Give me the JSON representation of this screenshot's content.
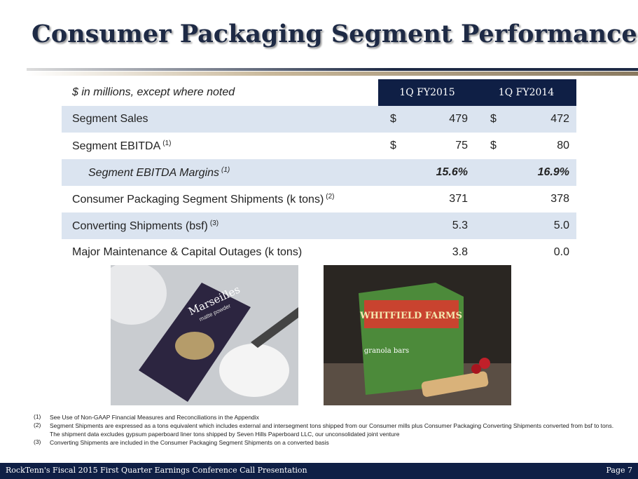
{
  "header": {
    "title": "Consumer Packaging Segment Performance"
  },
  "table": {
    "caption": "$ in millions, except where noted",
    "columns": [
      "1Q FY2015",
      "1Q FY2014"
    ],
    "rows": [
      {
        "label": "Segment Sales",
        "cells": [
          {
            "currency": "$",
            "value": "479"
          },
          {
            "currency": "$",
            "value": "472"
          }
        ]
      },
      {
        "label": "Segment EBITDA",
        "note": "(1)",
        "cells": [
          {
            "currency": "$",
            "value": "75"
          },
          {
            "currency": "$",
            "value": "80"
          }
        ]
      },
      {
        "label": "Segment EBITDA Margins",
        "note": "(1)",
        "cells": [
          {
            "value": "15.6%"
          },
          {
            "value": "16.9%"
          }
        ]
      },
      {
        "label": "Consumer Packaging Segment Shipments (k tons)",
        "note": "(2)",
        "cells": [
          {
            "value": "371"
          },
          {
            "value": "378"
          }
        ]
      },
      {
        "label": "Converting Shipments (bsf)",
        "note": "(3)",
        "cells": [
          {
            "value": "5.3"
          },
          {
            "value": "5.0"
          }
        ]
      },
      {
        "label": "Major Maintenance & Capital Outages (k tons)",
        "cells": [
          {
            "value": "3.8"
          },
          {
            "value": "0.0"
          }
        ]
      }
    ]
  },
  "images": {
    "left": {
      "brand": "Marseilles",
      "product": "matte powder"
    },
    "right": {
      "brand": "WHITFIELD FARMS",
      "product": "granola bars"
    }
  },
  "footnotes": [
    {
      "marker": "(1)",
      "text": "See Use of Non-GAAP Financial Measures and Reconciliations in the Appendix"
    },
    {
      "marker": "(2)",
      "text": "Segment Shipments are expressed as a tons equivalent which includes external and intersegment tons shipped from our Consumer mills plus Consumer Packaging Converting Shipments converted from bsf to tons.  The shipment data excludes gypsum paperboard liner tons shipped by Seven Hills Paperboard LLC, our unconsolidated joint venture"
    },
    {
      "marker": "(3)",
      "text": "Converting Shipments are included in the Consumer Packaging Segment Shipments on a converted basis"
    }
  ],
  "footer": {
    "left": "RockTenn's Fiscal 2015 First Quarter Earnings Conference Call Presentation",
    "right": "Page 7"
  }
}
